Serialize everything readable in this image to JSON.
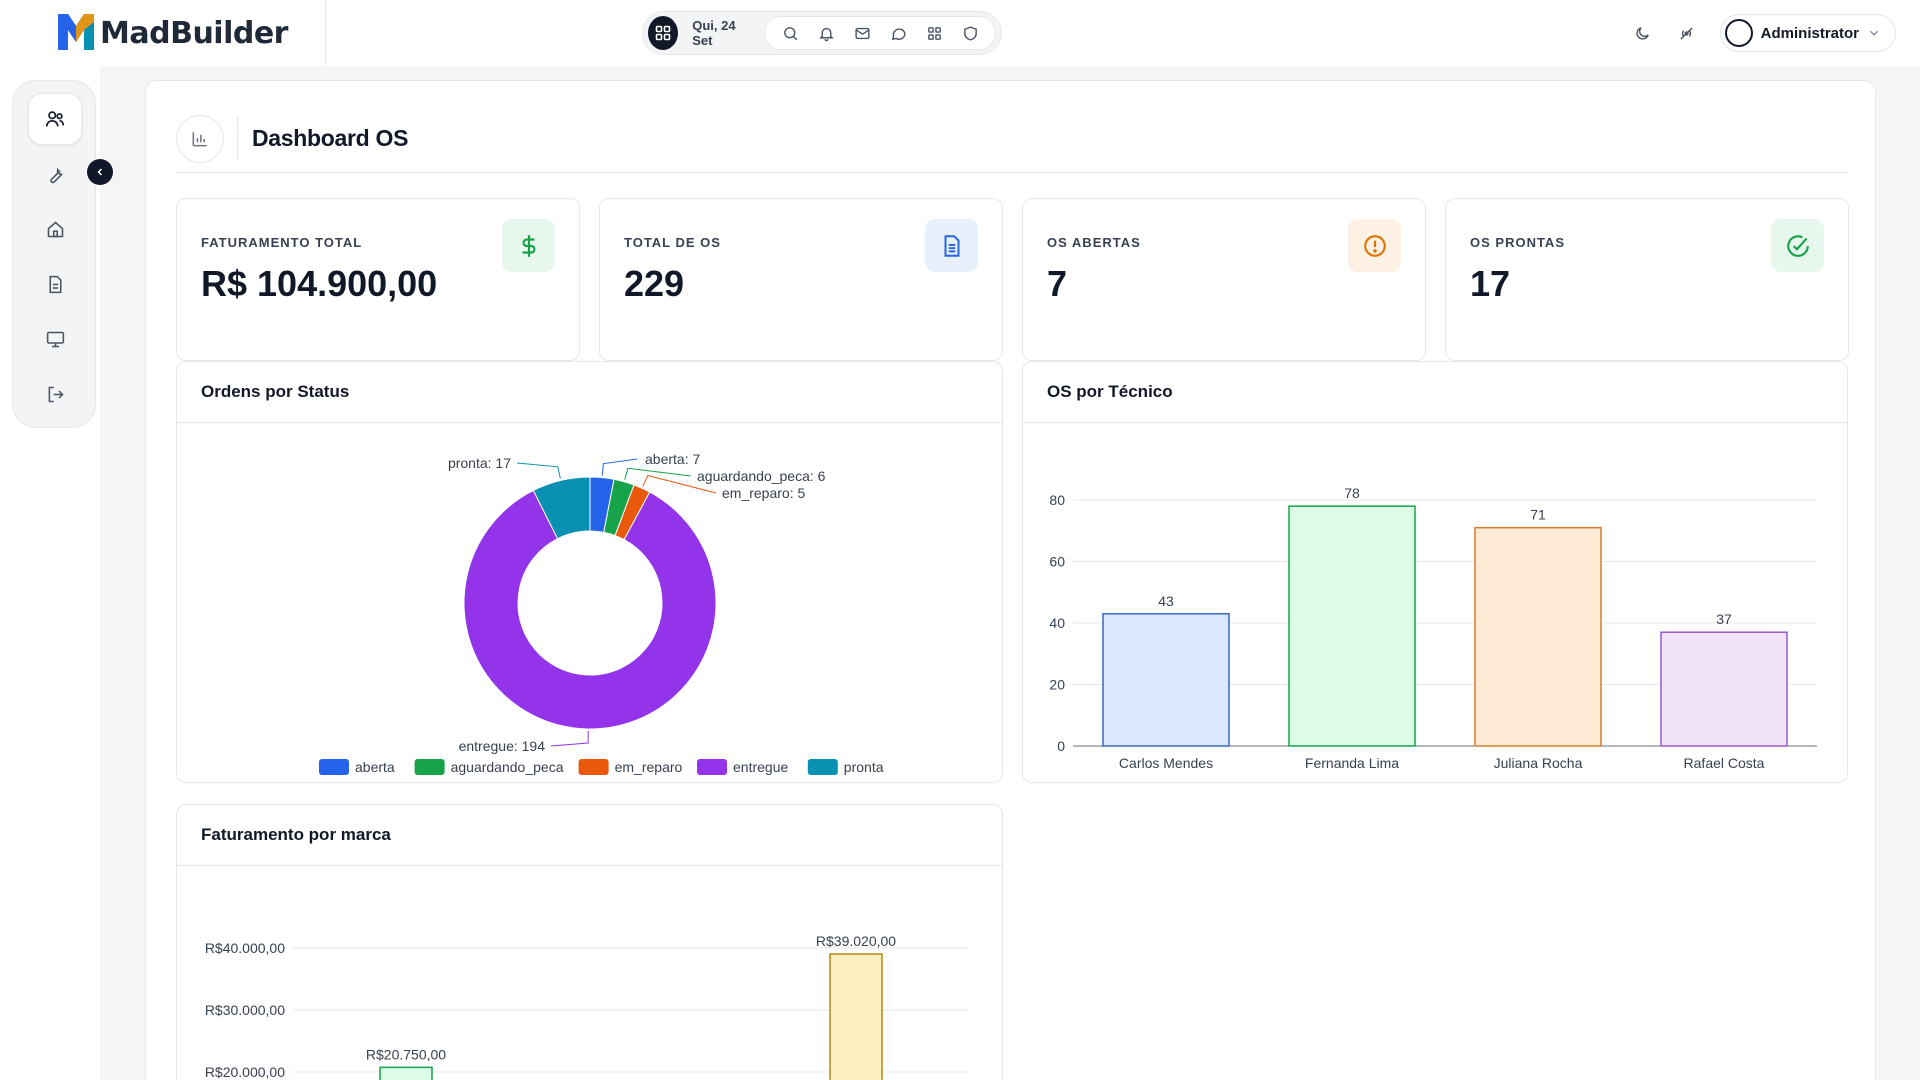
{
  "brand": {
    "name": "MadBuilder"
  },
  "topbar": {
    "date": "Qui, 24 Set",
    "icons": [
      "search-icon",
      "bell-icon",
      "mail-icon",
      "chat-icon",
      "apps-icon",
      "shield-icon"
    ],
    "user_name": "Administrator"
  },
  "sidebar": {
    "items": [
      {
        "name": "users",
        "icon": "users-icon",
        "active": true
      },
      {
        "name": "tools",
        "icon": "wrench-icon"
      },
      {
        "name": "home",
        "icon": "home-icon"
      },
      {
        "name": "documents",
        "icon": "document-icon"
      },
      {
        "name": "monitor",
        "icon": "monitor-icon"
      },
      {
        "name": "logout",
        "icon": "logout-icon"
      }
    ]
  },
  "page": {
    "title": "Dashboard OS"
  },
  "stats": [
    {
      "label": "FATURAMENTO TOTAL",
      "value": "R$ 104.900,00",
      "icon": "dollar-icon",
      "color": "#16a34a",
      "bg": "#e8f7ee"
    },
    {
      "label": "TOTAL DE OS",
      "value": "229",
      "icon": "document-icon",
      "color": "#2563eb",
      "bg": "#e8f0fb"
    },
    {
      "label": "OS ABERTAS",
      "value": "7",
      "icon": "alert-icon",
      "color": "#d97706",
      "bg": "#fdf1e3"
    },
    {
      "label": "OS PRONTAS",
      "value": "17",
      "icon": "check-circle-icon",
      "color": "#16a34a",
      "bg": "#e8f7ee"
    }
  ],
  "panels": {
    "status": {
      "title": "Ordens por Status"
    },
    "tecnico": {
      "title": "OS por Técnico"
    },
    "marca": {
      "title": "Faturamento por marca"
    }
  },
  "chart_data": [
    {
      "type": "pie",
      "title": "Ordens por Status",
      "categories": [
        "aberta",
        "aguardando_peca",
        "em_reparo",
        "entregue",
        "pronta"
      ],
      "values": [
        7,
        6,
        5,
        194,
        17
      ],
      "colors": [
        "#2563eb",
        "#16a34a",
        "#ea580c",
        "#9333ea",
        "#0891b2"
      ],
      "data_labels": [
        "aberta: 7",
        "aguardando_peca: 6",
        "em_reparo: 5",
        "entregue: 194",
        "pronta: 17"
      ],
      "donut": true,
      "legend": "bottom"
    },
    {
      "type": "bar",
      "title": "OS por Técnico",
      "categories": [
        "Carlos Mendes",
        "Fernanda Lima",
        "Juliana Rocha",
        "Rafael Costa"
      ],
      "values": [
        43,
        78,
        71,
        37
      ],
      "ylim": [
        0,
        80
      ],
      "yticks": [
        0,
        20,
        40,
        60,
        80
      ],
      "colors": [
        {
          "fill": "#dbe8fc",
          "stroke": "#3b66c4"
        },
        {
          "fill": "#dcfce7",
          "stroke": "#16a34a"
        },
        {
          "fill": "#feead5",
          "stroke": "#d97c2b"
        },
        {
          "fill": "#f0e4fb",
          "stroke": "#9b59c9"
        }
      ],
      "grid": true
    },
    {
      "type": "bar",
      "title": "Faturamento por marca",
      "yticks": [
        "R$20.000,00",
        "R$30.000,00",
        "R$40.000,00"
      ],
      "ytick_values": [
        20000,
        30000,
        40000
      ],
      "values": [
        20750,
        39020
      ],
      "data_labels": [
        "R$20.750,00",
        "R$39.020,00"
      ],
      "colors": [
        {
          "fill": "#dcfce7",
          "stroke": "#16a34a"
        },
        {
          "fill": "#fdf0c2",
          "stroke": "#b8860b"
        }
      ],
      "grid": true
    }
  ]
}
